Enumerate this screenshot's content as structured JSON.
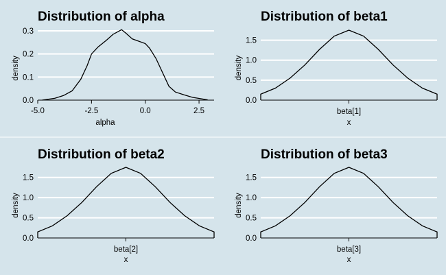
{
  "chart_data": [
    {
      "type": "line",
      "title": "Distribution of alpha",
      "xlabel": "alpha",
      "ylabel": "density",
      "xlim": [
        -5.0,
        3.2
      ],
      "ylim": [
        0,
        0.3
      ],
      "x_ticks": [
        -5.0,
        -2.5,
        0.0,
        2.5
      ],
      "x_tick_labels": [
        "-5.0",
        "-2.5",
        "0.0",
        "2.5"
      ],
      "y_ticks": [
        0.0,
        0.1,
        0.2,
        0.3
      ],
      "y_tick_labels": [
        "0.0",
        "0.1",
        "0.2",
        "0.3"
      ],
      "grid": true,
      "series": [
        {
          "x": [
            -4.8,
            -4.2,
            -3.8,
            -3.4,
            -3.0,
            -2.7,
            -2.5,
            -2.2,
            -1.8,
            -1.5,
            -1.1,
            -0.9,
            -0.6,
            -0.3,
            0.0,
            0.2,
            0.5,
            0.8,
            1.1,
            1.4,
            1.8,
            2.2,
            2.6,
            2.9
          ],
          "y": [
            0.0,
            0.008,
            0.02,
            0.04,
            0.09,
            0.15,
            0.2,
            0.23,
            0.26,
            0.285,
            0.305,
            0.29,
            0.265,
            0.255,
            0.245,
            0.225,
            0.18,
            0.12,
            0.06,
            0.035,
            0.023,
            0.012,
            0.006,
            0.001
          ]
        }
      ]
    },
    {
      "type": "line",
      "title": "Distribution of beta1",
      "xlabel": "x",
      "ylabel": "density",
      "xlim": [
        -0.72,
        0.72
      ],
      "ylim": [
        0,
        1.75
      ],
      "x_ticks": [
        0
      ],
      "x_tick_labels": [
        "beta[1]"
      ],
      "y_ticks": [
        0.0,
        0.5,
        1.0,
        1.5
      ],
      "y_tick_labels": [
        "0.0",
        "0.5",
        "1.0",
        "1.5"
      ],
      "grid": true,
      "series": [
        {
          "x": [
            -0.72,
            -0.6,
            -0.48,
            -0.36,
            -0.24,
            -0.12,
            0.0,
            0.12,
            0.24,
            0.36,
            0.48,
            0.6,
            0.72
          ],
          "y": [
            0.15,
            0.3,
            0.55,
            0.88,
            1.27,
            1.6,
            1.75,
            1.6,
            1.27,
            0.88,
            0.55,
            0.3,
            0.15
          ]
        }
      ]
    },
    {
      "type": "line",
      "title": "Distribution of beta2",
      "xlabel": "x",
      "ylabel": "density",
      "xlim": [
        -0.72,
        0.72
      ],
      "ylim": [
        0,
        1.75
      ],
      "x_ticks": [
        0
      ],
      "x_tick_labels": [
        "beta[2]"
      ],
      "y_ticks": [
        0.0,
        0.5,
        1.0,
        1.5
      ],
      "y_tick_labels": [
        "0.0",
        "0.5",
        "1.0",
        "1.5"
      ],
      "grid": true,
      "series": [
        {
          "x": [
            -0.72,
            -0.6,
            -0.48,
            -0.36,
            -0.24,
            -0.12,
            0.0,
            0.12,
            0.24,
            0.36,
            0.48,
            0.6,
            0.72
          ],
          "y": [
            0.15,
            0.3,
            0.55,
            0.88,
            1.27,
            1.6,
            1.75,
            1.6,
            1.27,
            0.88,
            0.55,
            0.3,
            0.15
          ]
        }
      ]
    },
    {
      "type": "line",
      "title": "Distribution of beta3",
      "xlabel": "x",
      "ylabel": "density",
      "xlim": [
        -0.72,
        0.72
      ],
      "ylim": [
        0,
        1.75
      ],
      "x_ticks": [
        0
      ],
      "x_tick_labels": [
        "beta[3]"
      ],
      "y_ticks": [
        0.0,
        0.5,
        1.0,
        1.5
      ],
      "y_tick_labels": [
        "0.0",
        "0.5",
        "1.0",
        "1.5"
      ],
      "grid": true,
      "series": [
        {
          "x": [
            -0.72,
            -0.6,
            -0.48,
            -0.36,
            -0.24,
            -0.12,
            0.0,
            0.12,
            0.24,
            0.36,
            0.48,
            0.6,
            0.72
          ],
          "y": [
            0.15,
            0.3,
            0.55,
            0.88,
            1.27,
            1.6,
            1.75,
            1.6,
            1.27,
            0.88,
            0.55,
            0.3,
            0.15
          ]
        }
      ]
    }
  ],
  "colors": {
    "background": "#d5e4eb",
    "grid": "#ffffff",
    "line": "#000000"
  }
}
